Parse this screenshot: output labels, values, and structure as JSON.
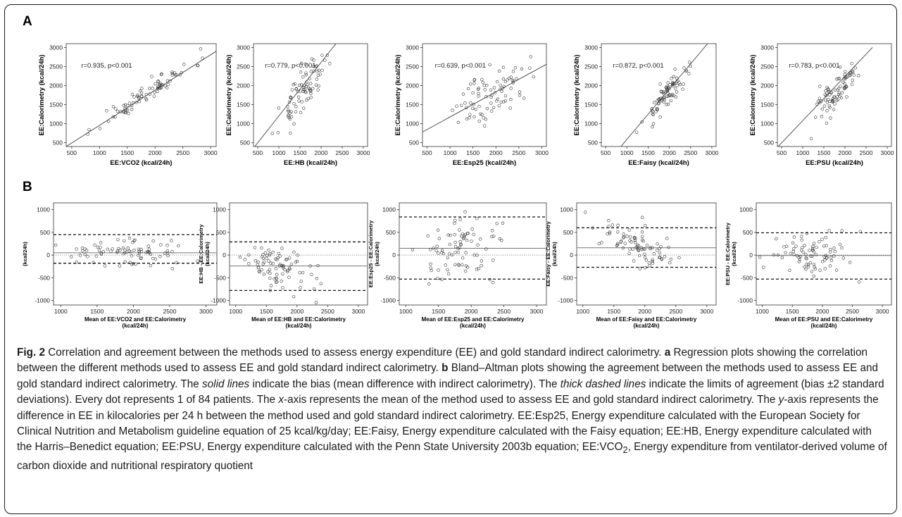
{
  "panel_labels": {
    "a": "A",
    "b": "B"
  },
  "caption": {
    "fig_label": "Fig. 2",
    "title": "Correlation and agreement between the methods used to assess energy expenditure (EE) and gold standard indirect calorimetry.",
    "a_letter": "a",
    "a_text": "Regression plots showing the correlation between the different methods used to assess EE and gold standard indirect calorimetry.",
    "b_letter": "b",
    "b_text": "Bland–Altman plots showing the agreement between the methods used to assess EE and gold standard indirect calorimetry. The",
    "solid_lines": "solid lines",
    "solid_text": "indicate the bias (mean difference with indirect calorimetry). The",
    "dashed_lines": "thick dashed lines",
    "dashed_text": "indicate the limits of agreement (bias ±2 standard deviations). Every dot represents 1 of 84 patients. The",
    "x_axis": "x",
    "x_text": "-axis represents the mean of the method used to assess EE and gold standard indirect calorimetry. The",
    "y_axis": "y",
    "y_text": "-axis represents the difference in EE in kilocalories per 24 h between the method used and gold standard indirect calorimetry. EE:Esp25, Energy expenditure calculated with the European Society for Clinical Nutrition and Metabolism guideline equation of 25 kcal/kg/day; EE:Faisy, Energy expenditure calculated with the Faisy equation; EE:HB, Energy expenditure calculated with the Harris–Benedict equation; EE:PSU, Energy expenditure calculated with the Penn State University 2003b equation; EE:VCO",
    "vco_sub": "2",
    "end_text": ", Energy expenditure from ventilator-derived volume of carbon dioxide and nutritional respiratory quotient"
  },
  "chart_data": [
    {
      "panel": "A",
      "type": "scatter",
      "xlabel": "EE:VCO2 (kcal/24h)",
      "ylabel": "EE:Calorimetry (kcal/24h)",
      "annotation": "r=0.935, p<0.001",
      "xlim": [
        400,
        3100
      ],
      "ylim": [
        400,
        3100
      ],
      "xticks": [
        500,
        1000,
        1500,
        2000,
        2500,
        3000
      ],
      "yticks": [
        500,
        1000,
        1500,
        2000,
        2500,
        3000
      ],
      "fit_line": [
        [
          400,
          400
        ],
        [
          3100,
          2900
        ]
      ],
      "n_points": 84,
      "cx": 1850,
      "cy": 1800,
      "sx": 420,
      "noise": 130,
      "slope": 0.93,
      "seed": 11
    },
    {
      "panel": "A",
      "type": "scatter",
      "xlabel": "EE:HB (kcal/24h)",
      "ylabel": "EE:Calorimetry (kcal/24h)",
      "annotation": "r=0.779, p<0.001",
      "xlim": [
        400,
        3100
      ],
      "ylim": [
        400,
        3100
      ],
      "xticks": [
        500,
        1000,
        1500,
        2000,
        2500,
        3000
      ],
      "yticks": [
        500,
        1000,
        1500,
        2000,
        2500,
        3000
      ],
      "fit_line": [
        [
          430,
          400
        ],
        [
          2350,
          3100
        ]
      ],
      "n_points": 84,
      "cx": 1550,
      "cy": 1800,
      "sx": 260,
      "noise": 260,
      "slope": 1.4,
      "seed": 23
    },
    {
      "panel": "A",
      "type": "scatter",
      "xlabel": "EE:Esp25 (kcal/24h)",
      "ylabel": "EE:Calorimetry (kcal/24h)",
      "annotation": "r=0.639, p<0.001",
      "xlim": [
        400,
        3100
      ],
      "ylim": [
        400,
        3100
      ],
      "xticks": [
        500,
        1000,
        1500,
        2000,
        2500,
        3000
      ],
      "yticks": [
        500,
        1000,
        1500,
        2000,
        2500,
        3000
      ],
      "fit_line": [
        [
          400,
          780
        ],
        [
          3100,
          2560
        ]
      ],
      "n_points": 84,
      "cx": 1950,
      "cy": 1800,
      "sx": 380,
      "noise": 330,
      "slope": 0.66,
      "seed": 37
    },
    {
      "panel": "A",
      "type": "scatter",
      "xlabel": "EE:Faisy (kcal/24h)",
      "ylabel": "EE:Calorimetry (kcal/24h)",
      "annotation": "r=0.872, p<0.001",
      "xlim": [
        400,
        3100
      ],
      "ylim": [
        400,
        3100
      ],
      "xticks": [
        500,
        1000,
        1500,
        2000,
        2500,
        3000
      ],
      "yticks": [
        500,
        1000,
        1500,
        2000,
        2500,
        3000
      ],
      "fit_line": [
        [
          860,
          400
        ],
        [
          2900,
          3100
        ]
      ],
      "n_points": 84,
      "cx": 1950,
      "cy": 1800,
      "sx": 270,
      "noise": 180,
      "slope": 1.3,
      "seed": 53
    },
    {
      "panel": "A",
      "type": "scatter",
      "xlabel": "EE:PSU (kcal/24h)",
      "ylabel": "EE:Calorimetry (kcal/24h)",
      "annotation": "r=0.783, p<0.001",
      "xlim": [
        400,
        3100
      ],
      "ylim": [
        400,
        3100
      ],
      "xticks": [
        500,
        1000,
        1500,
        2000,
        2500,
        3000
      ],
      "yticks": [
        500,
        1000,
        1500,
        2000,
        2500,
        3000
      ],
      "fit_line": [
        [
          400,
          380
        ],
        [
          2650,
          3000
        ]
      ],
      "n_points": 84,
      "cx": 1800,
      "cy": 1800,
      "sx": 280,
      "noise": 260,
      "slope": 1.1,
      "seed": 71
    },
    {
      "panel": "B",
      "type": "scatter",
      "xlabel": "Mean of EE:VCO2 and EE:Calorimetry",
      "xlabel2": "(kcal/24h)",
      "ylabel": "(kcal/24h)",
      "ylabel2": "",
      "xlim": [
        900,
        3150
      ],
      "ylim": [
        -1100,
        1150
      ],
      "xticks": [
        1000,
        1500,
        2000,
        2500,
        3000
      ],
      "yticks": [
        -1000,
        -500,
        0,
        500,
        1000
      ],
      "bias": 50,
      "loa": [
        -180,
        450
      ],
      "n_points": 84,
      "cx": 1900,
      "cy": 60,
      "sx": 420,
      "noise": 150,
      "slope": 0.0,
      "seed": 13
    },
    {
      "panel": "B",
      "type": "scatter",
      "xlabel": "Mean of EE:HB and EE:Calorimetry",
      "xlabel2": "(kcal/24h)",
      "ylabel": "EE:HB - EE:Calorimetry",
      "ylabel2": "(kcal/24h)",
      "xlim": [
        900,
        3150
      ],
      "ylim": [
        -1100,
        1150
      ],
      "xticks": [
        1000,
        1500,
        2000,
        2500,
        3000
      ],
      "yticks": [
        -1000,
        -500,
        0,
        500,
        1000
      ],
      "bias": -240,
      "loa": [
        -780,
        290
      ],
      "n_points": 84,
      "cx": 1650,
      "cy": -240,
      "sx": 280,
      "noise": 220,
      "slope": -0.35,
      "seed": 29
    },
    {
      "panel": "B",
      "type": "scatter",
      "xlabel": "Mean of EE:Esp25 and EE:Calorimetry",
      "xlabel2": "(kcal/24h)",
      "ylabel": "EE:Esp25 - EE:Calorimetry",
      "ylabel2": "(kcal/24h)",
      "xlim": [
        900,
        3150
      ],
      "ylim": [
        -1100,
        1150
      ],
      "xticks": [
        1000,
        1500,
        2000,
        2500,
        3000
      ],
      "yticks": [
        -1000,
        -500,
        0,
        500,
        1000
      ],
      "bias": 150,
      "loa": [
        -530,
        840
      ],
      "n_points": 84,
      "cx": 1900,
      "cy": 150,
      "sx": 340,
      "noise": 330,
      "slope": 0.2,
      "seed": 41
    },
    {
      "panel": "B",
      "type": "scatter",
      "xlabel": "Mean of EE:Faisy and EE:Calorimetry",
      "xlabel2": "(kcal/24h)",
      "ylabel": "EE:Faisy - EE:Calorimetry",
      "ylabel2": "(kcal/24h)",
      "xlim": [
        900,
        3150
      ],
      "ylim": [
        -1100,
        1150
      ],
      "xticks": [
        1000,
        1500,
        2000,
        2500,
        3000
      ],
      "yticks": [
        -1000,
        -500,
        0,
        500,
        1000
      ],
      "bias": 160,
      "loa": [
        -270,
        600
      ],
      "n_points": 84,
      "cx": 1900,
      "cy": 170,
      "sx": 300,
      "noise": 180,
      "slope": -0.45,
      "seed": 59
    },
    {
      "panel": "B",
      "type": "scatter",
      "xlabel": "Mean of EE:PSU and EE:Calorimetry",
      "xlabel2": "(kcal/24h)",
      "ylabel": "EE:PSU - EE:Calorimetry",
      "ylabel2": "(kcal/24h)",
      "xlim": [
        900,
        3150
      ],
      "ylim": [
        -1100,
        1150
      ],
      "xticks": [
        1000,
        1500,
        2000,
        2500,
        3000
      ],
      "yticks": [
        -1000,
        -500,
        0,
        500,
        1000
      ],
      "bias": -10,
      "loa": [
        -530,
        490
      ],
      "n_points": 84,
      "cx": 1850,
      "cy": -10,
      "sx": 320,
      "noise": 240,
      "slope": -0.1,
      "seed": 83
    }
  ]
}
